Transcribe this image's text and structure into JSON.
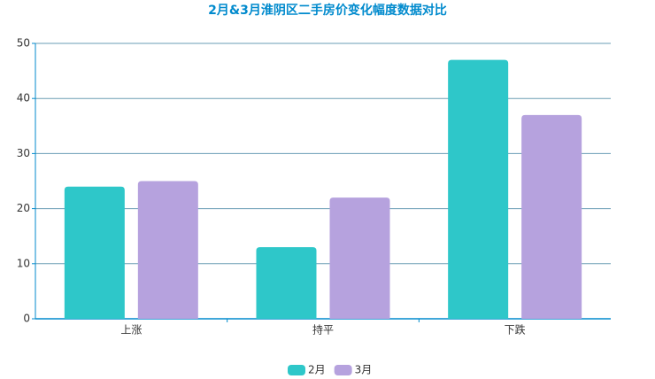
{
  "chart_data": {
    "type": "bar",
    "title": "2月&3月淮阴区二手房价变化幅度数据对比",
    "categories": [
      "上涨",
      "持平",
      "下跌"
    ],
    "series": [
      {
        "name": "2月",
        "color": "#2ec7c9",
        "values": [
          24,
          13,
          47
        ]
      },
      {
        "name": "3月",
        "color": "#b6a2de",
        "values": [
          25,
          22,
          37
        ]
      }
    ],
    "ylim": [
      0,
      50
    ],
    "yticks": [
      0,
      10,
      20,
      30,
      40,
      50
    ],
    "grid": true,
    "legend": "bottom"
  }
}
